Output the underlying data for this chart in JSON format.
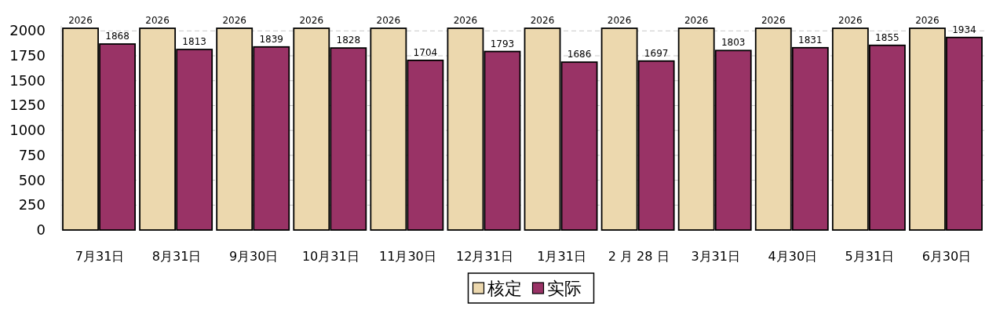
{
  "chart_data": {
    "type": "bar",
    "categories": [
      "7月31日",
      "8月31日",
      "9月30日",
      "10月31日",
      "11月30日",
      "12月31日",
      "1月31日",
      "2 月 28 日",
      "3月31日",
      "4月30日",
      "5月31日",
      "6月30日"
    ],
    "series": [
      {
        "name": "核定",
        "color": "#ecd8ae",
        "values": [
          2026,
          2026,
          2026,
          2026,
          2026,
          2026,
          2026,
          2026,
          2026,
          2026,
          2026,
          2026
        ]
      },
      {
        "name": "实际",
        "color": "#993366",
        "values": [
          1868,
          1813,
          1839,
          1828,
          1704,
          1793,
          1686,
          1697,
          1803,
          1831,
          1855,
          1934
        ]
      }
    ],
    "ylim": [
      0,
      2050
    ],
    "yticks": [
      0,
      250,
      500,
      750,
      1000,
      1250,
      1500,
      1750,
      2000
    ],
    "grid": "y",
    "legend": "bottom",
    "data_labels": true
  }
}
